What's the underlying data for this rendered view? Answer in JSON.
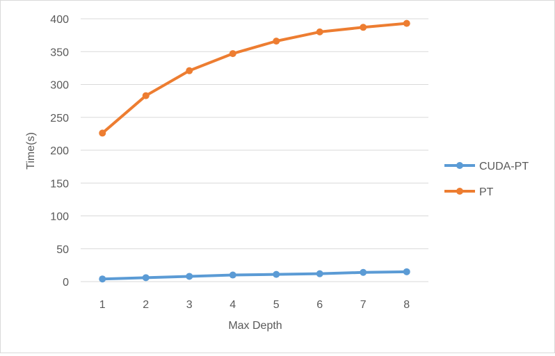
{
  "chart_data": {
    "type": "line",
    "title": "",
    "xlabel": "Max Depth",
    "ylabel": "Time(s)",
    "x": [
      1,
      2,
      3,
      4,
      5,
      6,
      7,
      8
    ],
    "ylim": [
      0,
      400
    ],
    "yticks": [
      0,
      50,
      100,
      150,
      200,
      250,
      300,
      350,
      400
    ],
    "grid": "horizontal",
    "legend_position": "right",
    "series": [
      {
        "name": "CUDA-PT",
        "color": "#5b9bd5",
        "values": [
          4,
          6,
          8,
          10,
          11,
          12,
          14,
          15
        ]
      },
      {
        "name": "PT",
        "color": "#ed7d31",
        "values": [
          226,
          283,
          321,
          347,
          366,
          380,
          387,
          393
        ]
      }
    ]
  }
}
